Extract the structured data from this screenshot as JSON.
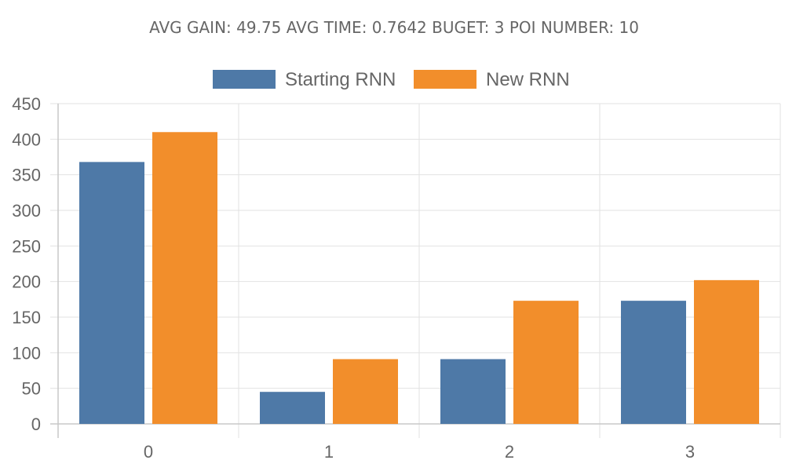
{
  "chart_data": {
    "type": "bar",
    "title": "AVG GAIN: 49.75 AVG TIME: 0.7642 BUGET: 3 POI NUMBER: 10",
    "xlabel": "",
    "ylabel": "",
    "categories": [
      "0",
      "1",
      "2",
      "3"
    ],
    "series": [
      {
        "name": "Starting RNN",
        "color": "#4e79a7",
        "values": [
          368,
          45,
          91,
          173
        ]
      },
      {
        "name": "New RNN",
        "color": "#f28e2b",
        "values": [
          410,
          91,
          173,
          202
        ]
      }
    ],
    "ylim": [
      0,
      450
    ],
    "yticks": [
      "0",
      "50",
      "100",
      "150",
      "200",
      "250",
      "300",
      "350",
      "400",
      "450"
    ],
    "grid": true,
    "legend": "top-center"
  }
}
